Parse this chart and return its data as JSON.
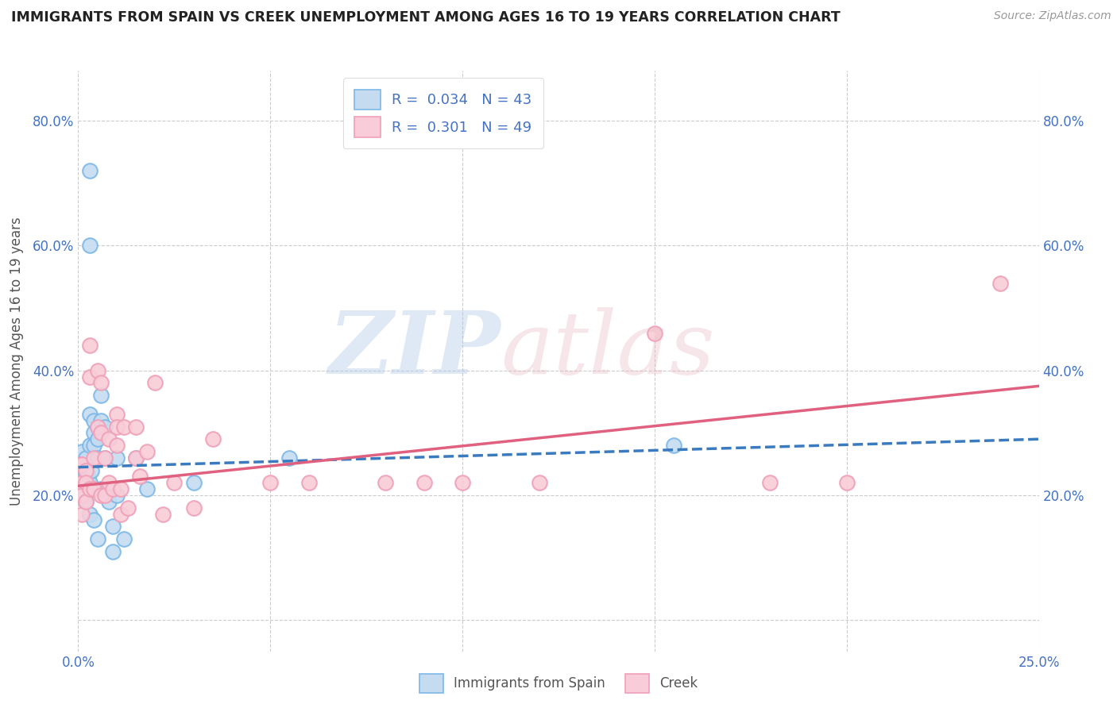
{
  "title": "IMMIGRANTS FROM SPAIN VS CREEK UNEMPLOYMENT AMONG AGES 16 TO 19 YEARS CORRELATION CHART",
  "source": "Source: ZipAtlas.com",
  "ylabel": "Unemployment Among Ages 16 to 19 years",
  "legend_r1": "R =  0.034",
  "legend_n1": "N = 43",
  "legend_r2": "R =  0.301",
  "legend_n2": "N = 49",
  "legend_label1": "Immigrants from Spain",
  "legend_label2": "Creek",
  "xlim": [
    0.0,
    0.25
  ],
  "ylim": [
    -0.05,
    0.88
  ],
  "yticks": [
    0.0,
    0.2,
    0.4,
    0.6,
    0.8
  ],
  "ytick_labels_left": [
    "",
    "20.0%",
    "40.0%",
    "60.0%",
    "80.0%"
  ],
  "ytick_labels_right": [
    "",
    "20.0%",
    "40.0%",
    "60.0%",
    "80.0%"
  ],
  "xticks": [
    0.0,
    0.05,
    0.1,
    0.15,
    0.2,
    0.25
  ],
  "xtick_labels": [
    "0.0%",
    "",
    "",
    "",
    "",
    "25.0%"
  ],
  "blue_color": "#7db8e8",
  "blue_fill": "#c5dcf0",
  "pink_color": "#f0a0b8",
  "pink_fill": "#f8ccd8",
  "line_blue": "#3a7abf",
  "line_pink": "#e06080",
  "background_color": "#ffffff",
  "grid_color": "#cccccc",
  "title_color": "#222222",
  "axis_label_color": "#4472c4",
  "blue_x": [
    0.0005,
    0.001,
    0.001,
    0.001,
    0.001,
    0.0015,
    0.002,
    0.002,
    0.002,
    0.002,
    0.0025,
    0.003,
    0.003,
    0.003,
    0.003,
    0.003,
    0.003,
    0.0035,
    0.004,
    0.004,
    0.004,
    0.004,
    0.004,
    0.005,
    0.005,
    0.005,
    0.005,
    0.006,
    0.006,
    0.006,
    0.007,
    0.007,
    0.008,
    0.009,
    0.009,
    0.01,
    0.01,
    0.012,
    0.015,
    0.018,
    0.03,
    0.055,
    0.155
  ],
  "blue_y": [
    0.25,
    0.27,
    0.25,
    0.23,
    0.2,
    0.24,
    0.26,
    0.24,
    0.22,
    0.19,
    0.23,
    0.72,
    0.6,
    0.33,
    0.28,
    0.22,
    0.17,
    0.24,
    0.32,
    0.3,
    0.28,
    0.21,
    0.16,
    0.31,
    0.29,
    0.26,
    0.13,
    0.36,
    0.32,
    0.21,
    0.31,
    0.26,
    0.19,
    0.15,
    0.11,
    0.26,
    0.2,
    0.13,
    0.26,
    0.21,
    0.22,
    0.26,
    0.28
  ],
  "pink_x": [
    0.0005,
    0.001,
    0.001,
    0.001,
    0.001,
    0.002,
    0.002,
    0.002,
    0.003,
    0.003,
    0.003,
    0.004,
    0.004,
    0.005,
    0.005,
    0.006,
    0.006,
    0.006,
    0.007,
    0.007,
    0.008,
    0.008,
    0.009,
    0.01,
    0.01,
    0.01,
    0.011,
    0.011,
    0.012,
    0.013,
    0.015,
    0.015,
    0.016,
    0.018,
    0.02,
    0.022,
    0.025,
    0.03,
    0.035,
    0.05,
    0.06,
    0.08,
    0.09,
    0.1,
    0.12,
    0.15,
    0.18,
    0.2,
    0.24
  ],
  "pink_y": [
    0.25,
    0.25,
    0.22,
    0.2,
    0.17,
    0.24,
    0.22,
    0.19,
    0.44,
    0.39,
    0.21,
    0.26,
    0.21,
    0.4,
    0.31,
    0.38,
    0.3,
    0.2,
    0.26,
    0.2,
    0.29,
    0.22,
    0.21,
    0.33,
    0.31,
    0.28,
    0.17,
    0.21,
    0.31,
    0.18,
    0.26,
    0.31,
    0.23,
    0.27,
    0.38,
    0.17,
    0.22,
    0.18,
    0.29,
    0.22,
    0.22,
    0.22,
    0.22,
    0.22,
    0.22,
    0.46,
    0.22,
    0.22,
    0.54
  ],
  "blue_trendline_x": [
    0.0,
    0.25
  ],
  "blue_trendline_y": [
    0.245,
    0.29
  ],
  "pink_trendline_x": [
    0.0,
    0.25
  ],
  "pink_trendline_y": [
    0.215,
    0.375
  ]
}
